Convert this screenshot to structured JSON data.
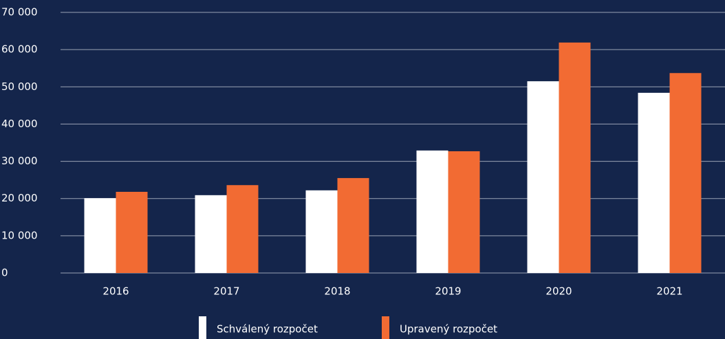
{
  "chart_data": {
    "type": "bar",
    "categories": [
      "2016",
      "2017",
      "2018",
      "2019",
      "2020",
      "2021"
    ],
    "series": [
      {
        "name": "Schválený rozpočet",
        "color": "#ffffff",
        "values": [
          20100,
          20900,
          22200,
          32900,
          51500,
          48400
        ]
      },
      {
        "name": "Upravený rozpočet",
        "color": "#f26b33",
        "values": [
          21800,
          23600,
          25500,
          32700,
          61900,
          53700
        ]
      }
    ],
    "ylim": [
      0,
      70000
    ],
    "yticks": [
      0,
      {
        "value": 10000,
        "label": "10 000"
      },
      {
        "value": 20000,
        "label": "20 000"
      },
      {
        "value": 30000,
        "label": "30 000"
      },
      {
        "value": 40000,
        "label": "40 000"
      },
      {
        "value": 50000,
        "label": "50 000"
      },
      {
        "value": 60000,
        "label": "60 000"
      },
      {
        "value": 70000,
        "label": "70 000"
      }
    ],
    "grid": true,
    "legend": "bottom"
  }
}
